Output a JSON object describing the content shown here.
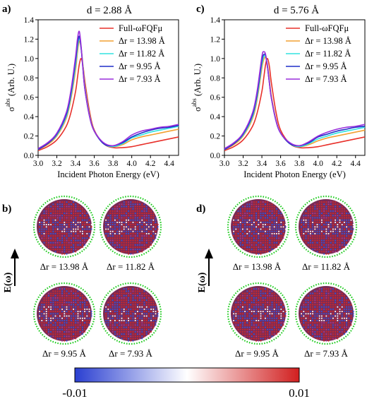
{
  "panels": {
    "a": {
      "label": "a)",
      "title": "d = 2.88 Å"
    },
    "b": {
      "label": "b)"
    },
    "c": {
      "label": "c)",
      "title": "d = 5.76 Å"
    },
    "d": {
      "label": "d)"
    }
  },
  "field_label": "E(ω)",
  "map_labels": [
    "Δr = 13.98 Å",
    "Δr = 11.82 Å",
    "Δr = 9.95 Å",
    "Δr = 7.93 Å"
  ],
  "colorbar": {
    "min_label": "-0.01",
    "max_label": "0.01",
    "min": -0.01,
    "max": 0.01,
    "colors": [
      "#2a3fd1",
      "#ffffff",
      "#d11f1f"
    ]
  },
  "map_colors": {
    "shell": "#22cc22",
    "positive": "#d22a2a",
    "negative": "#3a55d8",
    "core": "#7a2a55"
  },
  "chart_data": [
    {
      "type": "line",
      "title": "d = 2.88 Å",
      "xlabel": "Incident Photon Energy (eV)",
      "ylabel": "σabs (Arb. U.)",
      "xlim": [
        3.0,
        4.5
      ],
      "ylim": [
        0.0,
        1.4
      ],
      "xticks": [
        3.0,
        3.2,
        3.4,
        3.6,
        3.8,
        4.0,
        4.2,
        4.4
      ],
      "yticks": [
        0.0,
        0.2,
        0.4,
        0.6,
        0.8,
        1.0,
        1.2,
        1.4
      ],
      "legend_position": "top-right",
      "x": [
        3.0,
        3.1,
        3.2,
        3.3,
        3.35,
        3.4,
        3.42,
        3.44,
        3.46,
        3.48,
        3.5,
        3.55,
        3.6,
        3.7,
        3.8,
        3.9,
        4.0,
        4.1,
        4.2,
        4.3,
        4.4,
        4.5
      ],
      "series": [
        {
          "name": "Full-ωFQFμ",
          "color": "#e8302a",
          "values": [
            0.05,
            0.09,
            0.16,
            0.3,
            0.44,
            0.66,
            0.8,
            0.94,
            1.0,
            0.92,
            0.76,
            0.45,
            0.26,
            0.12,
            0.08,
            0.08,
            0.09,
            0.11,
            0.13,
            0.15,
            0.17,
            0.19
          ]
        },
        {
          "name": "Δr = 13.98 Å",
          "color": "#f2a132",
          "values": [
            0.06,
            0.11,
            0.2,
            0.38,
            0.58,
            0.88,
            1.06,
            1.18,
            1.1,
            0.92,
            0.72,
            0.42,
            0.25,
            0.12,
            0.09,
            0.11,
            0.16,
            0.19,
            0.21,
            0.23,
            0.25,
            0.27
          ]
        },
        {
          "name": "Δr = 11.82 Å",
          "color": "#30e3e0",
          "values": [
            0.06,
            0.12,
            0.21,
            0.4,
            0.61,
            0.93,
            1.11,
            1.21,
            1.1,
            0.9,
            0.7,
            0.41,
            0.25,
            0.12,
            0.09,
            0.12,
            0.18,
            0.21,
            0.24,
            0.26,
            0.28,
            0.3
          ]
        },
        {
          "name": "Δr = 9.95 Å",
          "color": "#1f2fc8",
          "values": [
            0.06,
            0.12,
            0.22,
            0.42,
            0.64,
            0.98,
            1.15,
            1.23,
            1.1,
            0.88,
            0.68,
            0.4,
            0.25,
            0.12,
            0.1,
            0.13,
            0.19,
            0.23,
            0.26,
            0.28,
            0.29,
            0.31
          ]
        },
        {
          "name": "Δr = 7.93 Å",
          "color": "#9a2fdc",
          "values": [
            0.07,
            0.13,
            0.23,
            0.44,
            0.67,
            1.02,
            1.2,
            1.28,
            1.12,
            0.88,
            0.68,
            0.4,
            0.25,
            0.13,
            0.1,
            0.14,
            0.21,
            0.25,
            0.27,
            0.29,
            0.3,
            0.32
          ]
        }
      ]
    },
    {
      "type": "line",
      "title": "d = 5.76 Å",
      "xlabel": "Incident Photon Energy (eV)",
      "ylabel": "σabs (Arb. U.)",
      "xlim": [
        3.0,
        4.5
      ],
      "ylim": [
        0.0,
        1.4
      ],
      "xticks": [
        3.0,
        3.2,
        3.4,
        3.6,
        3.8,
        4.0,
        4.2,
        4.4
      ],
      "yticks": [
        0.0,
        0.2,
        0.4,
        0.6,
        0.8,
        1.0,
        1.2,
        1.4
      ],
      "legend_position": "top-right",
      "x": [
        3.0,
        3.1,
        3.2,
        3.3,
        3.35,
        3.4,
        3.42,
        3.44,
        3.46,
        3.48,
        3.5,
        3.55,
        3.6,
        3.7,
        3.8,
        3.9,
        4.0,
        4.1,
        4.2,
        4.3,
        4.4,
        4.5
      ],
      "series": [
        {
          "name": "Full-ωFQFμ",
          "color": "#e8302a",
          "values": [
            0.05,
            0.09,
            0.16,
            0.3,
            0.44,
            0.66,
            0.8,
            0.94,
            1.0,
            0.92,
            0.76,
            0.45,
            0.26,
            0.12,
            0.08,
            0.08,
            0.09,
            0.11,
            0.13,
            0.15,
            0.17,
            0.19
          ]
        },
        {
          "name": "Δr = 13.98 Å",
          "color": "#f2a132",
          "values": [
            0.06,
            0.11,
            0.2,
            0.38,
            0.58,
            0.9,
            0.99,
            1.01,
            0.93,
            0.78,
            0.62,
            0.37,
            0.23,
            0.12,
            0.09,
            0.11,
            0.15,
            0.18,
            0.2,
            0.22,
            0.24,
            0.26
          ]
        },
        {
          "name": "Δr = 11.82 Å",
          "color": "#30e3e0",
          "values": [
            0.06,
            0.12,
            0.21,
            0.4,
            0.61,
            0.94,
            1.02,
            1.02,
            0.92,
            0.76,
            0.6,
            0.36,
            0.23,
            0.12,
            0.09,
            0.12,
            0.17,
            0.2,
            0.23,
            0.25,
            0.27,
            0.29
          ]
        },
        {
          "name": "Δr = 9.95 Å",
          "color": "#1f2fc8",
          "values": [
            0.06,
            0.12,
            0.22,
            0.42,
            0.64,
            0.98,
            1.04,
            1.03,
            0.91,
            0.75,
            0.6,
            0.36,
            0.23,
            0.12,
            0.1,
            0.13,
            0.19,
            0.22,
            0.25,
            0.27,
            0.29,
            0.3
          ]
        },
        {
          "name": "Δr = 7.93 Å",
          "color": "#9a2fdc",
          "values": [
            0.07,
            0.13,
            0.23,
            0.44,
            0.67,
            1.02,
            1.07,
            1.04,
            0.91,
            0.75,
            0.6,
            0.36,
            0.23,
            0.13,
            0.1,
            0.14,
            0.2,
            0.24,
            0.27,
            0.29,
            0.3,
            0.32
          ]
        }
      ]
    }
  ]
}
